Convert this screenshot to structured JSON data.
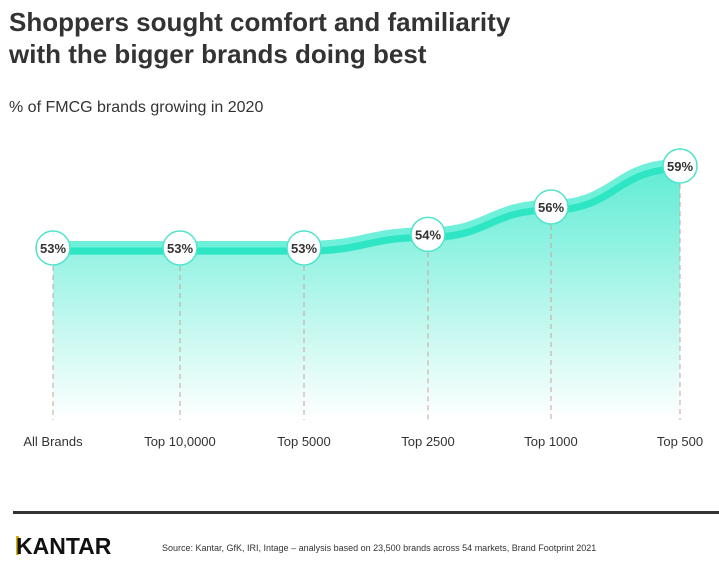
{
  "title_lines": [
    "Shoppers sought comfort and familiarity",
    "with the bigger brands doing best"
  ],
  "subtitle": "% of FMCG brands growing in 2020",
  "chart_data": {
    "type": "area",
    "title": "Shoppers sought comfort and familiarity with the bigger brands doing best",
    "subtitle": "% of FMCG brands growing in 2020",
    "categories": [
      "All Brands",
      "Top 10,0000",
      "Top 5000",
      "Top 2500",
      "Top 1000",
      "Top 500"
    ],
    "values": [
      53,
      53,
      53,
      54,
      56,
      59
    ],
    "data_labels": [
      "53%",
      "53%",
      "53%",
      "54%",
      "56%",
      "59%"
    ],
    "grid": false,
    "legend": "none",
    "colors": {
      "line": "#2ee6c3",
      "fill_top": "#5eecd4",
      "marker_border": "#4fe3cc",
      "drop_line": "#c9a39a"
    }
  },
  "footer": {
    "logo": "KANTAR",
    "source": "Source: Kantar, GfK, IRI, Intage – analysis based on 23,500 brands across 54 markets, Brand Footprint 2021"
  }
}
